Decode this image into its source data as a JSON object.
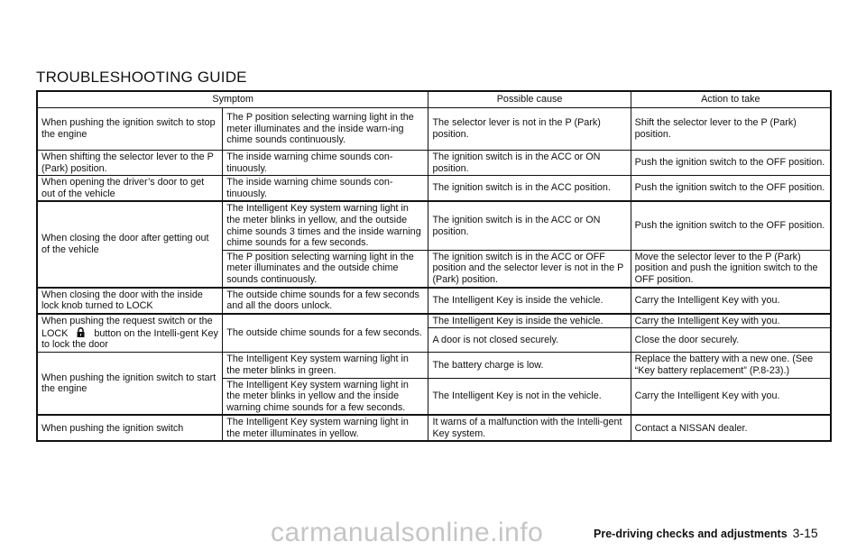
{
  "title": "TROUBLESHOOTING GUIDE",
  "headers": {
    "symptom": "Symptom",
    "cause": "Possible cause",
    "action": "Action to take"
  },
  "rows": {
    "r1": {
      "s1": "When pushing the ignition switch to stop the engine",
      "s2": "The P position selecting warning light in the meter illuminates and the inside warn-ing chime sounds continuously.",
      "cause": "The selector lever is not in the P (Park) position.",
      "action": "Shift the selector lever to the P (Park) position."
    },
    "r2": {
      "s1": "When shifting the selector lever to the P (Park) position.",
      "s2": "The inside warning chime sounds con-tinuously.",
      "cause": "The ignition switch is in the ACC or ON position.",
      "action": "Push the ignition switch to the OFF position."
    },
    "r3": {
      "s1": "When opening the driver’s door to get out of the vehicle",
      "s2": "The inside warning chime sounds con-tinuously.",
      "cause": "The ignition switch is in the ACC position.",
      "action": "Push the ignition switch to the OFF position."
    },
    "r4": {
      "s1": "When closing the door after getting out of the vehicle",
      "a": {
        "s2": "The Intelligent Key system warning light in the meter blinks in yellow, and the outside chime sounds 3 times and the inside warning chime sounds for a few seconds.",
        "cause": "The ignition switch is in the ACC or ON position.",
        "action": "Push the ignition switch to the OFF position."
      },
      "b": {
        "s2": "The P position selecting warning light in the meter illuminates and the outside chime sounds continuously.",
        "cause": "The ignition switch is in the ACC or OFF position and the selector lever is not in the P (Park) position.",
        "action": "Move the selector lever to the P (Park) position and push the ignition switch to the OFF position."
      }
    },
    "r5": {
      "s1": "When closing the door with the inside lock knob turned to LOCK",
      "s2": "The outside chime sounds for a few seconds and all the doors unlock.",
      "cause": "The Intelligent Key is inside the vehicle.",
      "action": "Carry the Intelligent Key with you."
    },
    "r6": {
      "s1_pre": "When pushing the request switch or the LOCK",
      "s1_post": "button on the Intelli-gent Key to lock the door",
      "s2": "The outside chime sounds for a few seconds.",
      "a": {
        "cause": "The Intelligent Key is inside the vehicle.",
        "action": "Carry the Intelligent Key with you."
      },
      "b": {
        "cause": "A door is not closed securely.",
        "action": "Close the door securely."
      }
    },
    "r7": {
      "s1": "When pushing the ignition switch to start the engine",
      "a": {
        "s2": "The Intelligent Key system warning light in the meter blinks in green.",
        "cause": "The battery charge is low.",
        "action": "Replace the battery with a new one. (See “Key battery replacement” (P.8-23).)"
      },
      "b": {
        "s2": "The Intelligent Key system warning light in the meter blinks in yellow and the inside warning chime sounds for a few seconds.",
        "cause": "The Intelligent Key is not in the vehicle.",
        "action": "Carry the Intelligent Key with you."
      }
    },
    "r8": {
      "s1": "When pushing the ignition switch",
      "s2": "The Intelligent Key system warning light in the meter illuminates in yellow.",
      "cause": "It warns of a malfunction with the Intelli-gent Key system.",
      "action": "Contact a NISSAN dealer."
    }
  },
  "lock_icon": "padlock-icon",
  "footer": {
    "section": "Pre-driving checks and adjustments",
    "page": "3-15"
  },
  "watermark": "carmanualsonline.info"
}
